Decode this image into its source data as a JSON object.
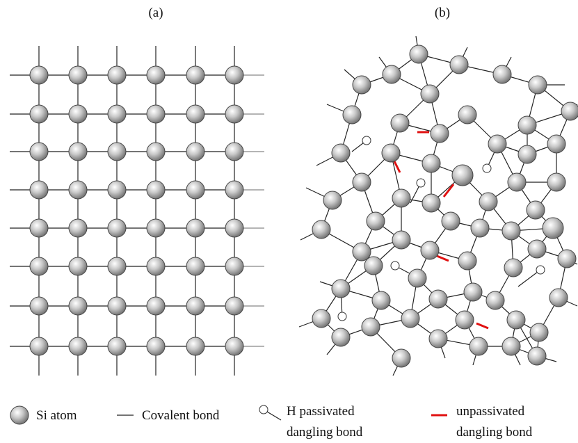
{
  "panels": [
    {
      "label": "(a)"
    },
    {
      "label": "(b)"
    }
  ],
  "legend": [
    {
      "lines": [
        "Si atom"
      ]
    },
    {
      "lines": [
        "Covalent bond"
      ]
    },
    {
      "lines": [
        "H passivated",
        "dangling bond"
      ]
    },
    {
      "lines": [
        "unpassivated",
        "dangling bond"
      ]
    }
  ]
}
